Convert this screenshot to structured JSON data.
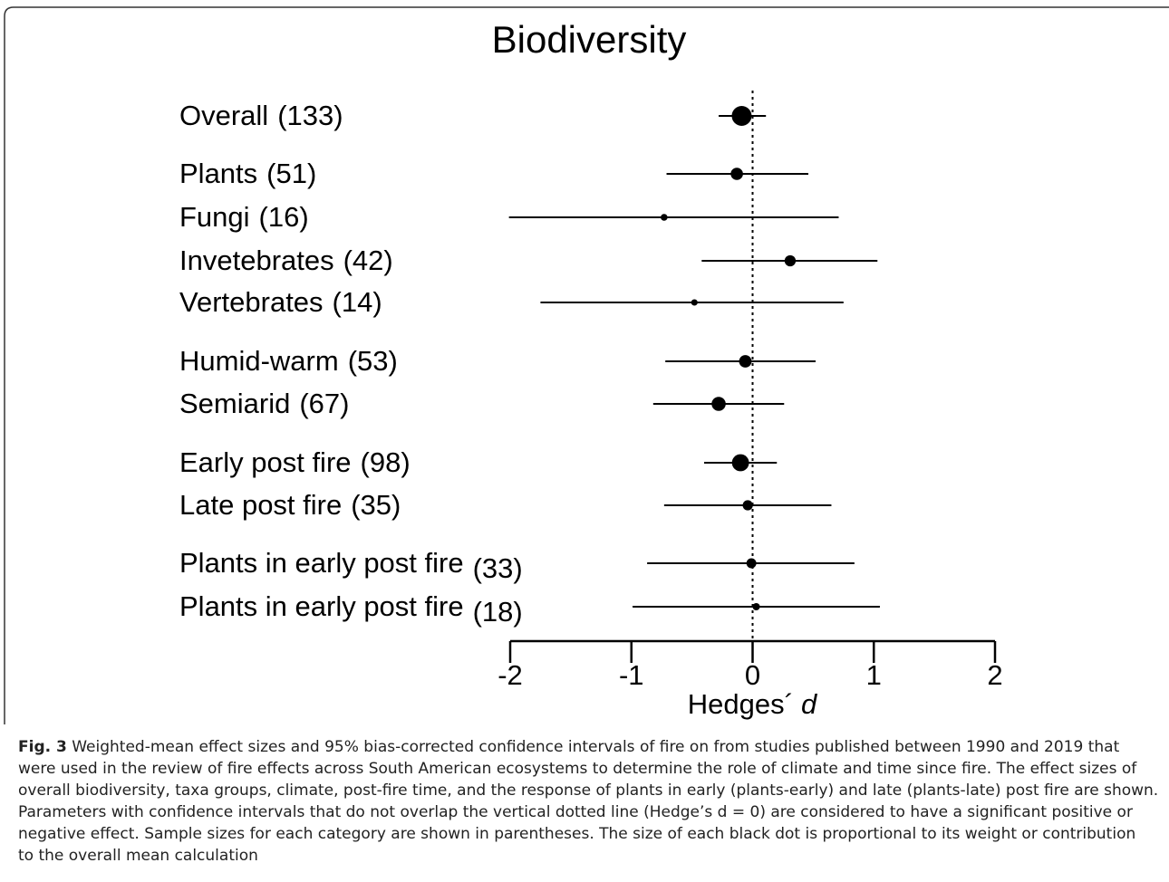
{
  "chart_data": {
    "type": "forest",
    "title": "Biodiversity",
    "categories": [
      "Overall",
      "Plants",
      "Fungi",
      "Invetebrates",
      "Vertebrates",
      "Humid-warm",
      "Semiarid",
      "Early post fire",
      "Late post fire",
      "Plants in early post fire",
      "Plants in early post fire"
    ],
    "sample_sizes": [
      133,
      51,
      16,
      42,
      14,
      53,
      67,
      98,
      35,
      33,
      18
    ],
    "sample_size_labels": [
      "(133)",
      "(51)",
      "(16)",
      "(42)",
      "(14)",
      "(53)",
      "(67)",
      "(98)",
      "(35)",
      "(33)",
      "(18)"
    ],
    "values": [
      -0.09,
      -0.13,
      -0.73,
      0.31,
      -0.48,
      -0.06,
      -0.28,
      -0.1,
      -0.04,
      -0.01,
      0.03
    ],
    "ci_low": [
      -0.28,
      -0.71,
      -2.01,
      -0.42,
      -1.75,
      -0.72,
      -0.82,
      -0.4,
      -0.73,
      -0.87,
      -0.99
    ],
    "ci_high": [
      0.11,
      0.46,
      0.71,
      1.03,
      0.75,
      0.52,
      0.26,
      0.2,
      0.65,
      0.84,
      1.05
    ],
    "color": "#000000",
    "xlim": [
      -2,
      2
    ],
    "xticks": [
      -2,
      -1,
      0,
      1,
      2
    ],
    "reference_line": 0,
    "xlabel": "Hedges´",
    "xlabel_symbol": "d",
    "caption_label": "Fig. 3",
    "caption_lines": [
      " Weighted-mean effect sizes and 95% bias-corrected confidence intervals of fire on from studies published between 1990 and 2019 that",
      "were used in the review of fire effects across South American ecosystems to determine the role of climate and time since fire. The effect sizes of",
      "overall biodiversity, taxa groups, climate, post-fire time, and the response of plants in early (plants-early) and late (plants-late) post fire are shown.",
      "Parameters with confidence intervals that do not overlap the vertical dotted line (Hedge’s d = 0) are considered to have a significant positive or",
      "negative effect. Sample sizes for each category are shown in parentheses. The size of each black dot is proportional to its weight or contribution",
      "to the overall mean calculation"
    ]
  }
}
